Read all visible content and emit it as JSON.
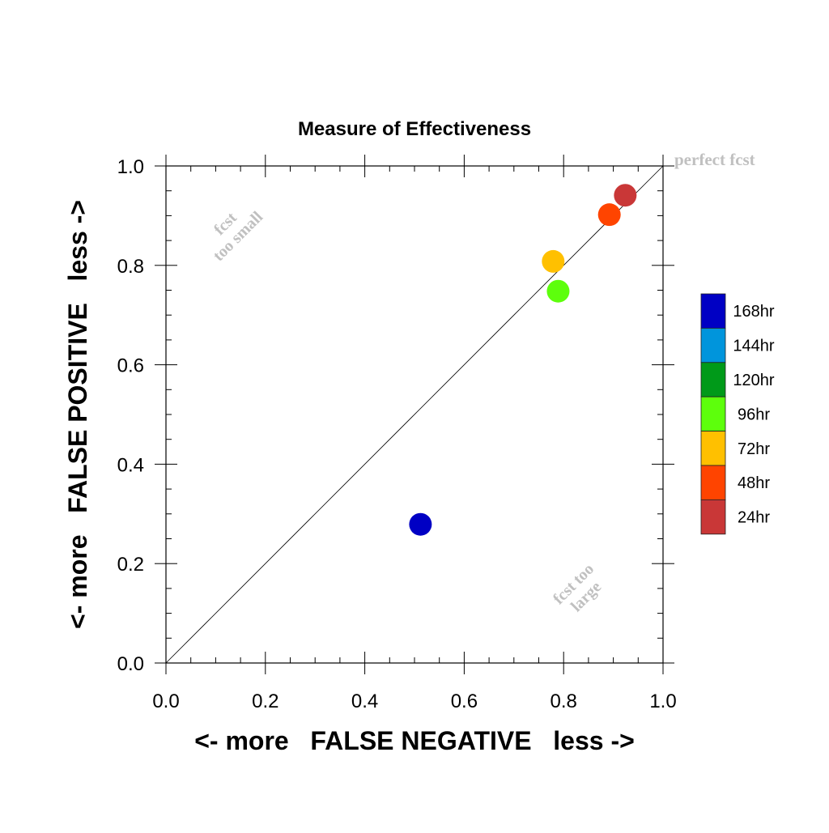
{
  "chart_data": {
    "type": "scatter",
    "title": "Measure of Effectiveness",
    "xlabel": "<- more   FALSE NEGATIVE   less ->",
    "ylabel": "<- more   FALSE POSITIVE   less ->",
    "xlim": [
      0.0,
      1.0
    ],
    "ylim": [
      0.0,
      1.0
    ],
    "xticks": [
      "0.0",
      "0.2",
      "0.4",
      "0.6",
      "0.8",
      "1.0"
    ],
    "yticks": [
      "0.0",
      "0.2",
      "0.4",
      "0.6",
      "0.8",
      "1.0"
    ],
    "diagonal": true,
    "grid": false,
    "legend_position": "right",
    "annotations": {
      "perfect": "perfect fcst",
      "too_small_1": "fcst",
      "too_small_2": "too small",
      "too_large_1": "fcst too",
      "too_large_2": "large",
      "color": "#c0c0c0"
    },
    "series": [
      {
        "name": "168hr",
        "color": "#0000c4",
        "x": 0.512,
        "y": 0.279
      },
      {
        "name": "144hr",
        "color": "#0095dc"
      },
      {
        "name": "120hr",
        "color": "#009a19"
      },
      {
        "name": "96hr",
        "color": "#5dff0c",
        "x": 0.789,
        "y": 0.748
      },
      {
        "name": "72hr",
        "color": "#ffc000",
        "x": 0.779,
        "y": 0.808
      },
      {
        "name": "48hr",
        "color": "#ff4400",
        "x": 0.892,
        "y": 0.902
      },
      {
        "name": "24hr",
        "color": "#c93737",
        "x": 0.924,
        "y": 0.941
      }
    ]
  }
}
